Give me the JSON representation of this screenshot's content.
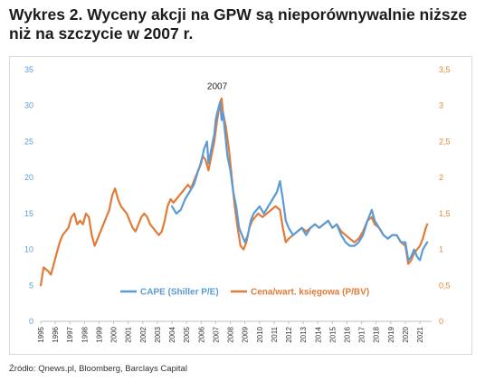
{
  "header": {
    "title": "Wykres 2. Wyceny akcji na GPW są nieporównywalnie niższe niż na szczycie w 2007 r."
  },
  "footer": {
    "source": "Źródło: Qnews.pl, Bloomberg, Barclays Capital"
  },
  "chart_data": {
    "type": "line",
    "title": "",
    "xlabel": "",
    "ylabel_left": "",
    "ylabel_right": "",
    "xlim": [
      1995,
      2021.8
    ],
    "ylim_left": [
      0,
      35
    ],
    "ylim_right": [
      0,
      3.5
    ],
    "yticks_left": [
      "0",
      "5",
      "10",
      "15",
      "20",
      "25",
      "30",
      "35"
    ],
    "yticks_right": [
      "0",
      "0,5",
      "1",
      "1,5",
      "2",
      "2,5",
      "3",
      "3,5"
    ],
    "xticks": [
      "1995",
      "1996",
      "1997",
      "1998",
      "1999",
      "2000",
      "2001",
      "2002",
      "2003",
      "2004",
      "2005",
      "2006",
      "2007",
      "2008",
      "2009",
      "2010",
      "2011",
      "2012",
      "2013",
      "2014",
      "2015",
      "2016",
      "2017",
      "2018",
      "2019",
      "2020",
      "2021"
    ],
    "grid": false,
    "legend_position": "bottom-center",
    "annotations": [
      {
        "text": "2007",
        "x": 2007.1,
        "y": 32.3
      }
    ],
    "series": [
      {
        "name": "CAPE (Shiller P/E)",
        "axis": "left",
        "color": "#5b9bd5",
        "points": [
          [
            2004.0,
            16
          ],
          [
            2004.3,
            15
          ],
          [
            2004.6,
            15.5
          ],
          [
            2004.9,
            17
          ],
          [
            2005.2,
            18
          ],
          [
            2005.5,
            19
          ],
          [
            2005.8,
            21
          ],
          [
            2006.0,
            22
          ],
          [
            2006.2,
            24
          ],
          [
            2006.4,
            25
          ],
          [
            2006.5,
            22
          ],
          [
            2006.7,
            24
          ],
          [
            2006.9,
            26
          ],
          [
            2007.0,
            28
          ],
          [
            2007.1,
            29
          ],
          [
            2007.3,
            30.5
          ],
          [
            2007.4,
            28
          ],
          [
            2007.5,
            29
          ],
          [
            2007.6,
            27
          ],
          [
            2007.8,
            23
          ],
          [
            2008.0,
            21
          ],
          [
            2008.2,
            18
          ],
          [
            2008.4,
            16
          ],
          [
            2008.6,
            13
          ],
          [
            2008.8,
            12
          ],
          [
            2009.0,
            11
          ],
          [
            2009.2,
            12
          ],
          [
            2009.4,
            14
          ],
          [
            2009.6,
            15
          ],
          [
            2009.8,
            15.5
          ],
          [
            2010.0,
            16
          ],
          [
            2010.3,
            15
          ],
          [
            2010.6,
            16
          ],
          [
            2010.9,
            17
          ],
          [
            2011.2,
            18
          ],
          [
            2011.4,
            19.5
          ],
          [
            2011.6,
            17
          ],
          [
            2011.8,
            14
          ],
          [
            2012.0,
            13
          ],
          [
            2012.3,
            12
          ],
          [
            2012.6,
            12.5
          ],
          [
            2012.9,
            13
          ],
          [
            2013.2,
            12
          ],
          [
            2013.5,
            13
          ],
          [
            2013.8,
            13.5
          ],
          [
            2014.1,
            13
          ],
          [
            2014.4,
            13.5
          ],
          [
            2014.7,
            14
          ],
          [
            2015.0,
            13
          ],
          [
            2015.3,
            13.5
          ],
          [
            2015.6,
            12
          ],
          [
            2015.9,
            11
          ],
          [
            2016.2,
            10.5
          ],
          [
            2016.5,
            10.5
          ],
          [
            2016.8,
            11
          ],
          [
            2017.1,
            12
          ],
          [
            2017.4,
            14
          ],
          [
            2017.7,
            15.5
          ],
          [
            2017.9,
            14
          ],
          [
            2018.2,
            13
          ],
          [
            2018.5,
            12
          ],
          [
            2018.8,
            11.5
          ],
          [
            2019.1,
            12
          ],
          [
            2019.4,
            12
          ],
          [
            2019.7,
            11
          ],
          [
            2020.0,
            11
          ],
          [
            2020.2,
            8.5
          ],
          [
            2020.4,
            9
          ],
          [
            2020.6,
            10
          ],
          [
            2020.8,
            9
          ],
          [
            2021.0,
            8.5
          ],
          [
            2021.2,
            10
          ],
          [
            2021.5,
            11
          ]
        ]
      },
      {
        "name": "Cena/wart. księgowa (P/BV)",
        "axis": "right",
        "color": "#e07b39",
        "points": [
          [
            1995.0,
            0.5
          ],
          [
            1995.2,
            0.75
          ],
          [
            1995.5,
            0.7
          ],
          [
            1995.7,
            0.65
          ],
          [
            1995.9,
            0.8
          ],
          [
            1996.1,
            0.95
          ],
          [
            1996.3,
            1.1
          ],
          [
            1996.5,
            1.2
          ],
          [
            1996.7,
            1.25
          ],
          [
            1996.9,
            1.3
          ],
          [
            1997.1,
            1.45
          ],
          [
            1997.3,
            1.5
          ],
          [
            1997.5,
            1.35
          ],
          [
            1997.7,
            1.4
          ],
          [
            1997.9,
            1.35
          ],
          [
            1998.1,
            1.5
          ],
          [
            1998.3,
            1.45
          ],
          [
            1998.5,
            1.2
          ],
          [
            1998.7,
            1.05
          ],
          [
            1998.9,
            1.15
          ],
          [
            1999.1,
            1.25
          ],
          [
            1999.3,
            1.35
          ],
          [
            1999.5,
            1.45
          ],
          [
            1999.7,
            1.55
          ],
          [
            1999.9,
            1.75
          ],
          [
            2000.1,
            1.85
          ],
          [
            2000.3,
            1.7
          ],
          [
            2000.5,
            1.6
          ],
          [
            2000.7,
            1.55
          ],
          [
            2000.9,
            1.5
          ],
          [
            2001.1,
            1.4
          ],
          [
            2001.3,
            1.3
          ],
          [
            2001.5,
            1.25
          ],
          [
            2001.7,
            1.35
          ],
          [
            2001.9,
            1.45
          ],
          [
            2002.1,
            1.5
          ],
          [
            2002.3,
            1.45
          ],
          [
            2002.5,
            1.35
          ],
          [
            2002.7,
            1.3
          ],
          [
            2002.9,
            1.25
          ],
          [
            2003.1,
            1.2
          ],
          [
            2003.3,
            1.25
          ],
          [
            2003.5,
            1.4
          ],
          [
            2003.7,
            1.6
          ],
          [
            2003.9,
            1.7
          ],
          [
            2004.1,
            1.65
          ],
          [
            2004.3,
            1.7
          ],
          [
            2004.5,
            1.75
          ],
          [
            2004.7,
            1.8
          ],
          [
            2004.9,
            1.85
          ],
          [
            2005.1,
            1.9
          ],
          [
            2005.3,
            1.85
          ],
          [
            2005.5,
            1.95
          ],
          [
            2005.7,
            2.05
          ],
          [
            2005.9,
            2.15
          ],
          [
            2006.1,
            2.3
          ],
          [
            2006.3,
            2.25
          ],
          [
            2006.5,
            2.1
          ],
          [
            2006.7,
            2.3
          ],
          [
            2006.9,
            2.5
          ],
          [
            2007.1,
            2.8
          ],
          [
            2007.3,
            3.05
          ],
          [
            2007.4,
            3.1
          ],
          [
            2007.5,
            2.9
          ],
          [
            2007.7,
            2.7
          ],
          [
            2007.9,
            2.4
          ],
          [
            2008.1,
            2.0
          ],
          [
            2008.3,
            1.6
          ],
          [
            2008.5,
            1.3
          ],
          [
            2008.7,
            1.05
          ],
          [
            2008.9,
            1.0
          ],
          [
            2009.1,
            1.1
          ],
          [
            2009.3,
            1.3
          ],
          [
            2009.5,
            1.4
          ],
          [
            2009.7,
            1.45
          ],
          [
            2009.9,
            1.5
          ],
          [
            2010.2,
            1.45
          ],
          [
            2010.5,
            1.5
          ],
          [
            2010.8,
            1.55
          ],
          [
            2011.1,
            1.6
          ],
          [
            2011.4,
            1.55
          ],
          [
            2011.6,
            1.3
          ],
          [
            2011.8,
            1.1
          ],
          [
            2012.0,
            1.15
          ],
          [
            2012.3,
            1.2
          ],
          [
            2012.6,
            1.25
          ],
          [
            2012.9,
            1.3
          ],
          [
            2013.2,
            1.25
          ],
          [
            2013.5,
            1.3
          ],
          [
            2013.8,
            1.35
          ],
          [
            2014.1,
            1.3
          ],
          [
            2014.4,
            1.35
          ],
          [
            2014.7,
            1.4
          ],
          [
            2015.0,
            1.3
          ],
          [
            2015.3,
            1.35
          ],
          [
            2015.6,
            1.25
          ],
          [
            2015.9,
            1.2
          ],
          [
            2016.2,
            1.15
          ],
          [
            2016.5,
            1.1
          ],
          [
            2016.8,
            1.15
          ],
          [
            2017.1,
            1.25
          ],
          [
            2017.4,
            1.4
          ],
          [
            2017.7,
            1.45
          ],
          [
            2017.9,
            1.35
          ],
          [
            2018.2,
            1.3
          ],
          [
            2018.5,
            1.2
          ],
          [
            2018.8,
            1.15
          ],
          [
            2019.1,
            1.2
          ],
          [
            2019.4,
            1.2
          ],
          [
            2019.7,
            1.1
          ],
          [
            2020.0,
            1.05
          ],
          [
            2020.2,
            0.8
          ],
          [
            2020.4,
            0.85
          ],
          [
            2020.6,
            0.95
          ],
          [
            2020.8,
            1.0
          ],
          [
            2021.0,
            1.05
          ],
          [
            2021.2,
            1.15
          ],
          [
            2021.4,
            1.3
          ],
          [
            2021.5,
            1.35
          ]
        ]
      }
    ]
  }
}
